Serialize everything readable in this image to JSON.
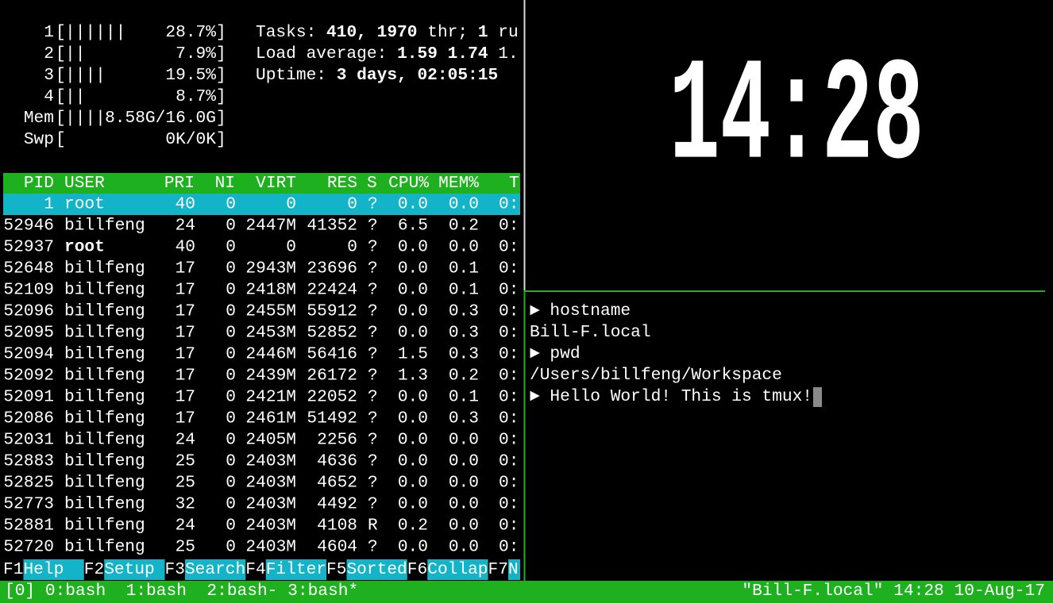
{
  "htop": {
    "brackets": [
      "[",
      "]"
    ],
    "meters": [
      {
        "label": "1",
        "bar": [
          {
            "text": "|||",
            "color": "#3cb54a"
          },
          {
            "text": "|||",
            "color": "#d0362b"
          }
        ],
        "value": [
          {
            "text": "28.7%",
            "color": "#9a9a9a"
          }
        ]
      },
      {
        "label": "2",
        "bar": [
          {
            "text": "|",
            "color": "#3cb54a"
          },
          {
            "text": "|",
            "color": "#d0362b"
          }
        ],
        "value": [
          {
            "text": "7.9%",
            "color": "#9a9a9a"
          }
        ]
      },
      {
        "label": "3",
        "bar": [
          {
            "text": "||",
            "color": "#3cb54a"
          },
          {
            "text": "||",
            "color": "#d0362b"
          }
        ],
        "value": [
          {
            "text": "19.5%",
            "color": "#9a9a9a"
          }
        ]
      },
      {
        "label": "4",
        "bar": [
          {
            "text": "|",
            "color": "#3cb54a"
          },
          {
            "text": "|",
            "color": "#d0362b"
          }
        ],
        "value": [
          {
            "text": "8.7%",
            "color": "#9a9a9a"
          }
        ]
      },
      {
        "label": "Mem",
        "bar": [
          {
            "text": "||||",
            "color": "#3cb54a"
          }
        ],
        "value": [
          {
            "text": "8.58G",
            "color": "#3cb54a"
          },
          {
            "text": "/",
            "color": "#3a6ee8"
          },
          {
            "text": "16.0G",
            "color": "#b5a63a"
          }
        ]
      },
      {
        "label": "Swp",
        "bar": [],
        "value": [
          {
            "text": "0K/0K",
            "color": "#9a9a9a"
          }
        ]
      }
    ],
    "summary": [
      [
        {
          "text": "Tasks:",
          "color": "#35bfd0",
          "bold": false
        },
        {
          "text": "410,",
          "color": "#35bfd0",
          "bold": true
        },
        {
          "text": "1970",
          "color": "#3cc23c",
          "bold": true
        },
        {
          "text": "thr;",
          "color": "#35bfd0",
          "bold": false
        },
        {
          "text": "1",
          "color": "#3cc23c",
          "bold": true
        },
        {
          "text": "ru",
          "color": "#35bfd0",
          "bold": false
        }
      ],
      [
        {
          "text": "Load average:",
          "color": "#35bfd0",
          "bold": false
        },
        {
          "text": "1.59",
          "color": "#ffffff",
          "bold": true
        },
        {
          "text": "1.74",
          "color": "#35bfd0",
          "bold": true
        },
        {
          "text": "1.",
          "color": "#35bfd0",
          "bold": false
        }
      ],
      [
        {
          "text": "Uptime:",
          "color": "#35bfd0",
          "bold": false
        },
        {
          "text": "3 days, 02:05:15",
          "color": "#35bfd0",
          "bold": true
        }
      ]
    ],
    "table": {
      "columns": [
        "PID",
        "USER",
        "PRI",
        "NI",
        "VIRT",
        "RES",
        "S",
        "CPU%",
        "MEM%",
        "T"
      ],
      "selected_row": 0,
      "dim_rows": [
        2
      ],
      "rows": [
        [
          "1",
          "root",
          "40",
          "0",
          "0",
          "0",
          "?",
          "0.0",
          "0.0",
          "0:"
        ],
        [
          "52946",
          "billfeng",
          "24",
          "0",
          "2447M",
          "41352",
          "?",
          "6.5",
          "0.2",
          "0:"
        ],
        [
          "52937",
          "root",
          "40",
          "0",
          "0",
          "0",
          "?",
          "0.0",
          "0.0",
          "0:"
        ],
        [
          "52648",
          "billfeng",
          "17",
          "0",
          "2943M",
          "23696",
          "?",
          "0.0",
          "0.1",
          "0:"
        ],
        [
          "52109",
          "billfeng",
          "17",
          "0",
          "2418M",
          "22424",
          "?",
          "0.0",
          "0.1",
          "0:"
        ],
        [
          "52096",
          "billfeng",
          "17",
          "0",
          "2455M",
          "55912",
          "?",
          "0.0",
          "0.3",
          "0:"
        ],
        [
          "52095",
          "billfeng",
          "17",
          "0",
          "2453M",
          "52852",
          "?",
          "0.0",
          "0.3",
          "0:"
        ],
        [
          "52094",
          "billfeng",
          "17",
          "0",
          "2446M",
          "56416",
          "?",
          "1.5",
          "0.3",
          "0:"
        ],
        [
          "52092",
          "billfeng",
          "17",
          "0",
          "2439M",
          "26172",
          "?",
          "1.3",
          "0.2",
          "0:"
        ],
        [
          "52091",
          "billfeng",
          "17",
          "0",
          "2421M",
          "22052",
          "?",
          "0.0",
          "0.1",
          "0:"
        ],
        [
          "52086",
          "billfeng",
          "17",
          "0",
          "2461M",
          "51492",
          "?",
          "0.0",
          "0.3",
          "0:"
        ],
        [
          "52031",
          "billfeng",
          "24",
          "0",
          "2405M",
          "2256",
          "?",
          "0.0",
          "0.0",
          "0:"
        ],
        [
          "52883",
          "billfeng",
          "25",
          "0",
          "2403M",
          "4636",
          "?",
          "0.0",
          "0.0",
          "0:"
        ],
        [
          "52825",
          "billfeng",
          "25",
          "0",
          "2403M",
          "4652",
          "?",
          "0.0",
          "0.0",
          "0:"
        ],
        [
          "52773",
          "billfeng",
          "32",
          "0",
          "2403M",
          "4492",
          "?",
          "0.0",
          "0.0",
          "0:"
        ],
        [
          "52881",
          "billfeng",
          "24",
          "0",
          "2403M",
          "4108",
          "R",
          "0.2",
          "0.0",
          "0:"
        ],
        [
          "52720",
          "billfeng",
          "25",
          "0",
          "2403M",
          "4604",
          "?",
          "0.0",
          "0.0",
          "0:"
        ]
      ]
    },
    "function_keys": [
      {
        "key": "F1",
        "label": "Help"
      },
      {
        "key": "F2",
        "label": "Setup"
      },
      {
        "key": "F3",
        "label": "Search"
      },
      {
        "key": "F4",
        "label": "Filter"
      },
      {
        "key": "F5",
        "label": "Sorted"
      },
      {
        "key": "F6",
        "label": "Collap"
      },
      {
        "key": "F7",
        "label": "N"
      }
    ]
  },
  "clock": {
    "time": "14:28",
    "color": "#3a3ae8"
  },
  "shell": {
    "lines": [
      "► hostname",
      "Bill-F.local",
      "► pwd",
      "/Users/billfeng/Workspace",
      "► Hello World! This is tmux!"
    ]
  },
  "status_bar": {
    "session": "[0]",
    "windows": [
      "0:bash",
      "1:bash",
      "2:bash-",
      "3:bash*"
    ],
    "right": [
      "\"Bill-F.local\"",
      "14:28",
      "10-Aug-17"
    ]
  }
}
